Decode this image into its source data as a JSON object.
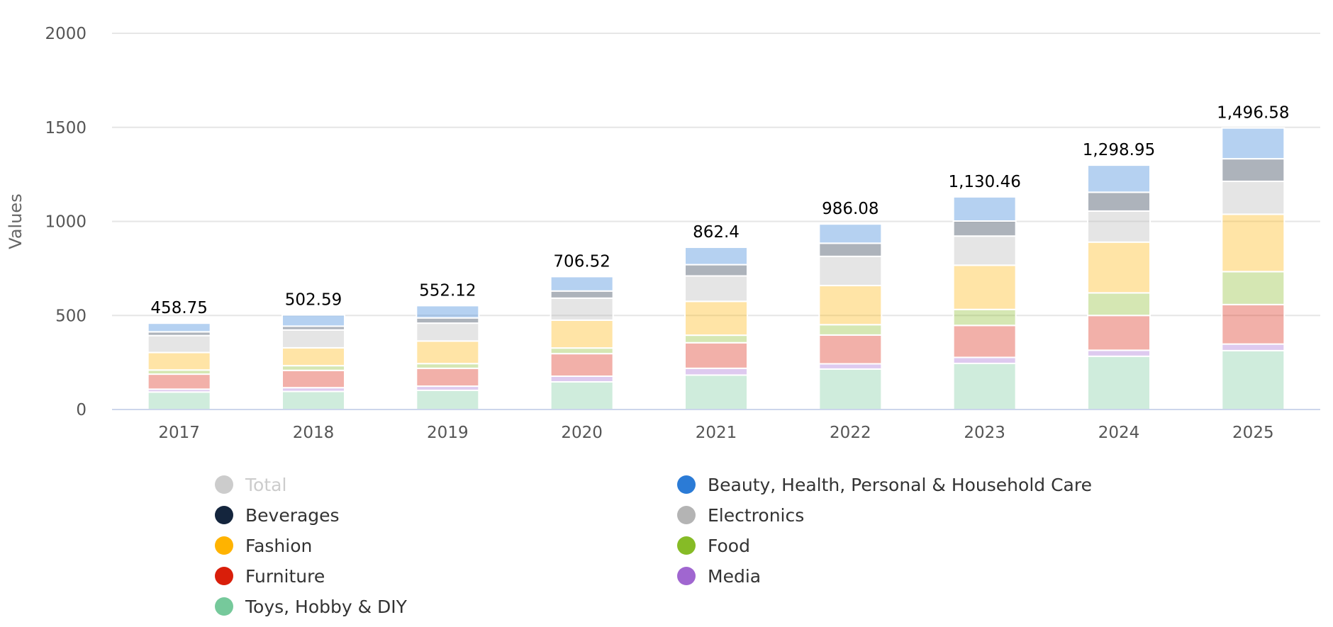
{
  "chart_data": {
    "type": "bar",
    "stacked": true,
    "title": "",
    "xlabel": "",
    "ylabel": "Values",
    "ylim": [
      0,
      2000
    ],
    "yticks": [
      0,
      500,
      1000,
      1500,
      2000
    ],
    "grid": true,
    "legend_position": "bottom",
    "categories": [
      "2017",
      "2018",
      "2019",
      "2020",
      "2021",
      "2022",
      "2023",
      "2024",
      "2025"
    ],
    "totals": [
      458.75,
      502.59,
      552.12,
      706.52,
      862.4,
      986.08,
      1130.46,
      1298.95,
      1496.58
    ],
    "total_labels": [
      "458.75",
      "502.59",
      "552.12",
      "706.52",
      "862.4",
      "986.08",
      "1,130.46",
      "1,298.95",
      "1,496.58"
    ],
    "series": [
      {
        "name": "Toys, Hobby & DIY",
        "color": "#76c99b",
        "values": [
          93,
          96,
          102,
          147,
          183,
          215,
          245,
          283,
          313
        ]
      },
      {
        "name": "Media",
        "color": "#a066d0",
        "values": [
          15,
          20,
          22,
          30,
          36,
          28,
          32,
          32,
          35
        ]
      },
      {
        "name": "Furniture",
        "color": "#d91e0a",
        "values": [
          80,
          92,
          95,
          120,
          136,
          153,
          170,
          185,
          210
        ]
      },
      {
        "name": "Food",
        "color": "#86bb26",
        "values": [
          22,
          25,
          25,
          30,
          40,
          55,
          85,
          120,
          175
        ]
      },
      {
        "name": "Fashion",
        "color": "#ffb300",
        "values": [
          93,
          95,
          120,
          148,
          180,
          208,
          235,
          270,
          305
        ]
      },
      {
        "name": "Electronics",
        "color": "#b4b4b4",
        "values": [
          90,
          95,
          95,
          117,
          135,
          155,
          155,
          165,
          175
        ]
      },
      {
        "name": "Beverages",
        "color": "#14253d",
        "values": [
          20,
          20,
          28,
          38,
          60,
          70,
          80,
          100,
          120
        ]
      },
      {
        "name": "Beauty, Health, Personal & Household Care",
        "color": "#2b7bd6",
        "values": [
          45.75,
          59.59,
          65.12,
          76.52,
          92.4,
          102.08,
          128.46,
          143.95,
          163.58
        ]
      }
    ],
    "legend": [
      {
        "name": "Total",
        "color": "#cccccc",
        "hidden": true
      },
      {
        "name": "Beauty, Health, Personal & Household Care",
        "color": "#2b7bd6",
        "hidden": false
      },
      {
        "name": "Beverages",
        "color": "#14253d",
        "hidden": false
      },
      {
        "name": "Electronics",
        "color": "#b4b4b4",
        "hidden": false
      },
      {
        "name": "Fashion",
        "color": "#ffb300",
        "hidden": false
      },
      {
        "name": "Food",
        "color": "#86bb26",
        "hidden": false
      },
      {
        "name": "Furniture",
        "color": "#d91e0a",
        "hidden": false
      },
      {
        "name": "Media",
        "color": "#a066d0",
        "hidden": false
      },
      {
        "name": "Toys, Hobby & DIY",
        "color": "#76c99b",
        "hidden": false
      }
    ]
  }
}
